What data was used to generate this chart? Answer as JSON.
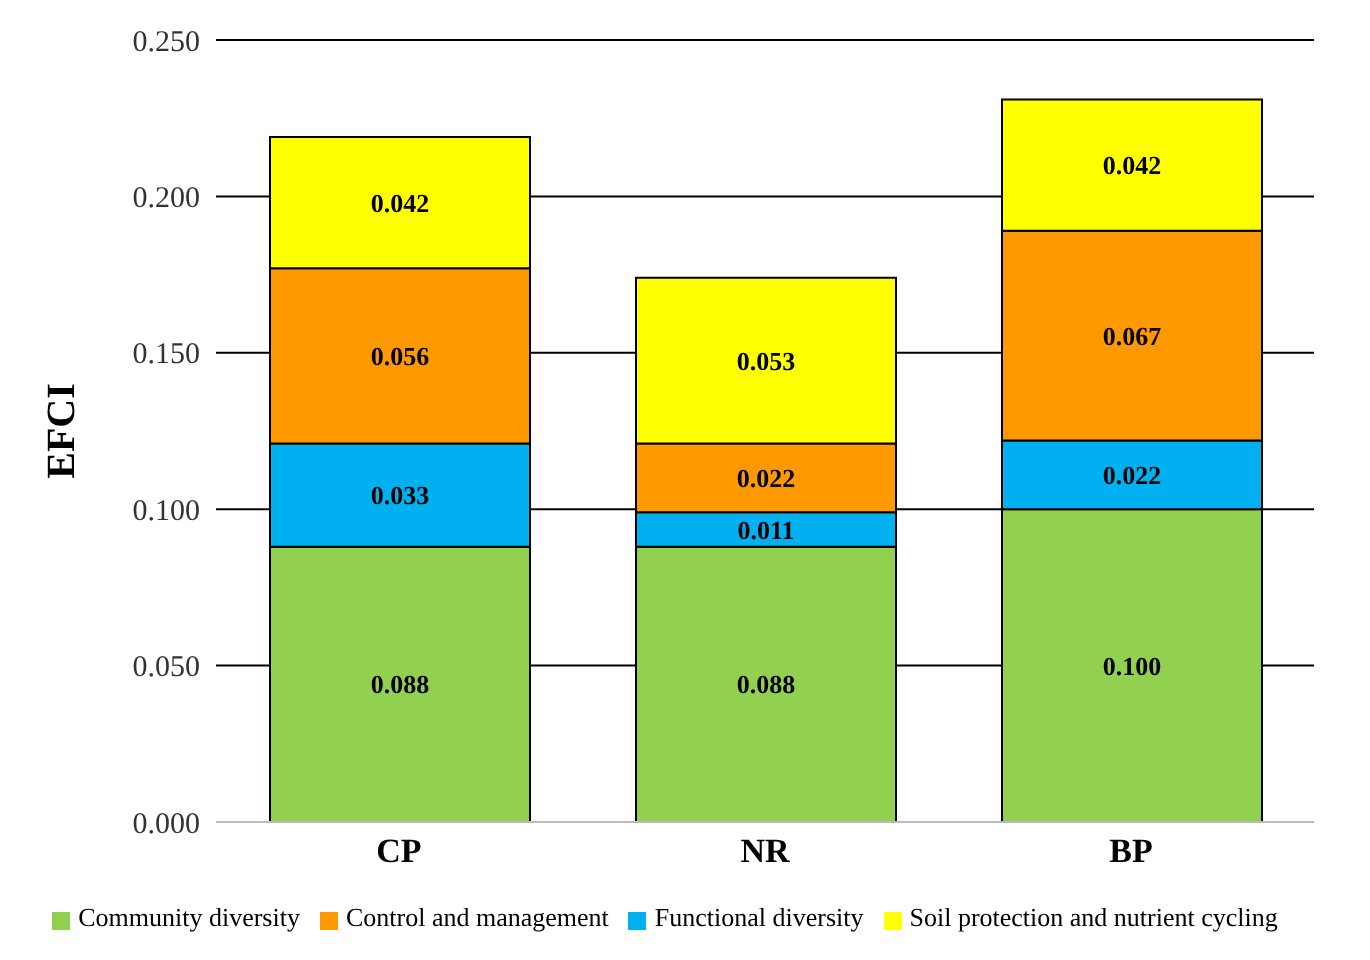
{
  "chart_data": {
    "type": "bar",
    "stacked": true,
    "ylabel": "EFCI",
    "categories": [
      "CP",
      "NR",
      "BP"
    ],
    "series": [
      {
        "name": "Community diversity",
        "color": "#92d050",
        "values": [
          0.088,
          0.088,
          0.1
        ],
        "value_labels": [
          "0.088",
          "0.088",
          "0.100"
        ]
      },
      {
        "name": "Functional diversity",
        "color": "#00b0f0",
        "values": [
          0.033,
          0.011,
          0.022
        ],
        "value_labels": [
          "0.033",
          "0.011",
          "0.022"
        ]
      },
      {
        "name": "Control and management",
        "color": "#ff9900",
        "values": [
          0.056,
          0.022,
          0.067
        ],
        "value_labels": [
          "0.056",
          "0.022",
          "0.067"
        ]
      },
      {
        "name": "Soil protection and nutrient cycling",
        "color": "#ffff00",
        "values": [
          0.042,
          0.053,
          0.042
        ],
        "value_labels": [
          "0.042",
          "0.053",
          "0.042"
        ]
      }
    ],
    "ylim": [
      0,
      0.25
    ],
    "yticks": [
      {
        "value": 0,
        "label": "0.000"
      },
      {
        "value": 0.05,
        "label": "0.050"
      },
      {
        "value": 0.1,
        "label": "0.100"
      },
      {
        "value": 0.15,
        "label": "0.150"
      },
      {
        "value": 0.2,
        "label": "0.200"
      },
      {
        "value": 0.25,
        "label": "0.250"
      }
    ],
    "grid": "y",
    "legend": "bottom"
  }
}
